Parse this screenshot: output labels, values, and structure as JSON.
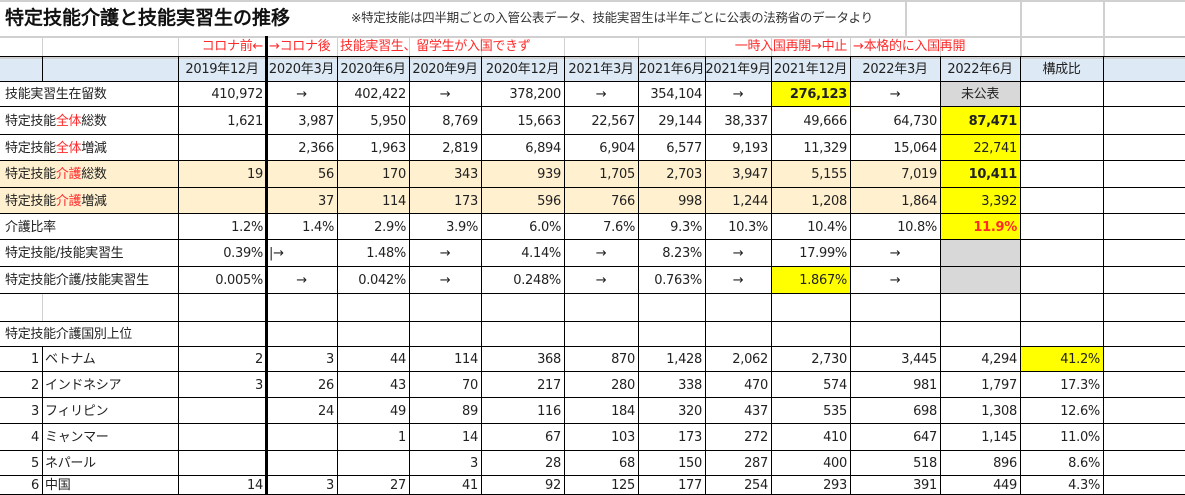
{
  "title": "特定技能介護と技能実習生の推移",
  "note": "※特定技能は四半期ごとの入管公表データ、技能実習生は半年ごとに公表の法務省のデータより",
  "annotations": {
    "pre_covid": "コロナ前←",
    "post_covid": "→コロナ後",
    "no_entry": "技能実習生、留学生が入国できず",
    "temp_reopen": "一時入国再開→中止",
    "full_reopen": "→本格的に入国再開"
  },
  "header": {
    "columns": [
      "2019年12月",
      "2020年3月",
      "2020年6月",
      "2020年9月",
      "2020年12月",
      "2021年3月",
      "2021年6月",
      "2021年9月",
      "2021年12月",
      "2022年3月",
      "2022年6月",
      "構成比"
    ]
  },
  "rows": [
    {
      "label_pre": "技能実習生在留数",
      "label_red": "",
      "label_post": "",
      "values": [
        "410,972",
        "→",
        "402,422",
        "→",
        "378,200",
        "→",
        "354,104",
        "→",
        "276,123",
        "→",
        "未公表",
        ""
      ]
    },
    {
      "label_pre": "特定技能",
      "label_red": "全体",
      "label_post": "総数",
      "values": [
        "1,621",
        "3,987",
        "5,950",
        "8,769",
        "15,663",
        "22,567",
        "29,144",
        "38,337",
        "49,666",
        "64,730",
        "87,471",
        ""
      ]
    },
    {
      "label_pre": "特定技能",
      "label_red": "全体",
      "label_post": "増減",
      "values": [
        "",
        "2,366",
        "1,963",
        "2,819",
        "6,894",
        "6,904",
        "6,577",
        "9,193",
        "11,329",
        "15,064",
        "22,741",
        ""
      ]
    },
    {
      "label_pre": "特定技能",
      "label_red": "介護",
      "label_post": "総数",
      "values": [
        "19",
        "56",
        "170",
        "343",
        "939",
        "1,705",
        "2,703",
        "3,947",
        "5,155",
        "7,019",
        "10,411",
        ""
      ]
    },
    {
      "label_pre": "特定技能",
      "label_red": "介護",
      "label_post": "増減",
      "values": [
        "",
        "37",
        "114",
        "173",
        "596",
        "766",
        "998",
        "1,244",
        "1,208",
        "1,864",
        "3,392",
        ""
      ]
    },
    {
      "label_pre": "介護比率",
      "label_red": "",
      "label_post": "",
      "values": [
        "1.2%",
        "1.4%",
        "2.9%",
        "3.9%",
        "6.0%",
        "7.6%",
        "9.3%",
        "10.3%",
        "10.4%",
        "10.8%",
        "11.9%",
        ""
      ]
    },
    {
      "label_pre": "特定技能/技能実習生",
      "label_red": "",
      "label_post": "",
      "values": [
        "0.39%",
        "|→",
        "1.48%",
        "→",
        "4.14%",
        "→",
        "8.23%",
        "→",
        "17.99%",
        "→",
        "",
        ""
      ]
    },
    {
      "label_pre": "特定技能介護/技能実習生",
      "label_red": "",
      "label_post": "",
      "values": [
        "0.005%",
        "→",
        "0.042%",
        "→",
        "0.248%",
        "→",
        "0.763%",
        "→",
        "1.867%",
        "→",
        "",
        ""
      ]
    }
  ],
  "country_section_label": "特定技能介護国別上位",
  "countries": [
    {
      "rank": "1",
      "name": "ベトナム",
      "values": [
        "2",
        "3",
        "44",
        "114",
        "368",
        "870",
        "1,428",
        "2,062",
        "2,730",
        "3,445",
        "4,294",
        "41.2%"
      ]
    },
    {
      "rank": "2",
      "name": "インドネシア",
      "values": [
        "3",
        "26",
        "43",
        "70",
        "217",
        "280",
        "338",
        "470",
        "574",
        "981",
        "1,797",
        "17.3%"
      ]
    },
    {
      "rank": "3",
      "name": "フィリピン",
      "values": [
        "",
        "24",
        "49",
        "89",
        "116",
        "184",
        "320",
        "437",
        "535",
        "698",
        "1,308",
        "12.6%"
      ]
    },
    {
      "rank": "4",
      "name": "ミャンマー",
      "values": [
        "",
        "",
        "1",
        "14",
        "67",
        "103",
        "173",
        "272",
        "410",
        "647",
        "1,145",
        "11.0%"
      ]
    },
    {
      "rank": "5",
      "name": "ネパール",
      "values": [
        "",
        "",
        "",
        "3",
        "28",
        "68",
        "150",
        "287",
        "400",
        "518",
        "896",
        "8.6%"
      ]
    },
    {
      "rank": "6",
      "name": "中国",
      "values": [
        "14",
        "3",
        "27",
        "41",
        "92",
        "125",
        "177",
        "254",
        "293",
        "391",
        "449",
        "4.3%"
      ]
    }
  ],
  "colors": {
    "header_bg": "#dde9f5",
    "beige_bg": "#fff0cf",
    "highlight_yellow": "#ffff00",
    "gray": "#d8d8d8",
    "annotation_red": "#ff2a2a"
  }
}
